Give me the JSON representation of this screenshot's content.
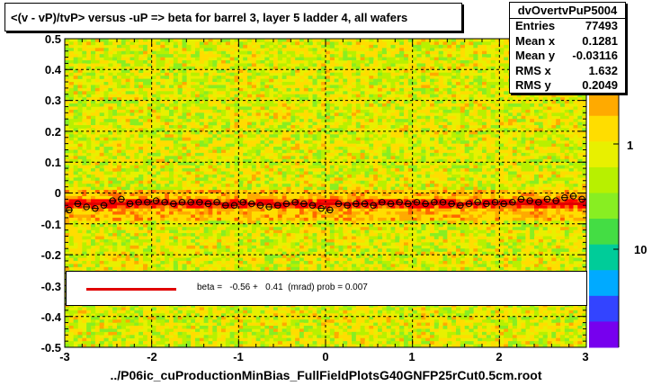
{
  "chart_data": {
    "type": "heatmap",
    "title": "<(v - vP)/tvP> versus  -uP => beta for barrel 3, layer 5 ladder 4, all wafers",
    "xlabel": "../P06ic_cuProductionMinBias_FullFieldPlotsG40GNFP25rCut0.5cm.root",
    "ylabel": "",
    "xlim": [
      -3,
      3
    ],
    "ylim": [
      -0.5,
      0.5
    ],
    "x_ticks": [
      "-3",
      "-2",
      "-1",
      "0",
      "1",
      "2",
      "3"
    ],
    "y_ticks": [
      "-0.5",
      "-0.4",
      "-0.3",
      "-0.2",
      "-0.1",
      "0",
      "0.1",
      "0.2",
      "0.3",
      "0.4",
      "0.5"
    ],
    "z_ticks": [
      "1",
      "10"
    ],
    "z_scale": "log",
    "grid": true,
    "palette": [
      "#ff0000",
      "#ff6600",
      "#ffaa00",
      "#ffdd00",
      "#e8f000",
      "#b8f000",
      "#88ee22",
      "#44dd44",
      "#00cc99",
      "#00aaff",
      "#3344ff",
      "#7700ee"
    ],
    "profile": {
      "name": "dvOvertvPuP5004",
      "x": [
        -2.95,
        -2.85,
        -2.75,
        -2.65,
        -2.55,
        -2.45,
        -2.35,
        -2.25,
        -2.15,
        -2.05,
        -1.95,
        -1.85,
        -1.75,
        -1.65,
        -1.55,
        -1.45,
        -1.35,
        -1.25,
        -1.15,
        -1.05,
        -0.95,
        -0.85,
        -0.75,
        -0.65,
        -0.55,
        -0.45,
        -0.35,
        -0.25,
        -0.15,
        -0.05,
        0.05,
        0.15,
        0.25,
        0.35,
        0.45,
        0.55,
        0.65,
        0.75,
        0.85,
        0.95,
        1.05,
        1.15,
        1.25,
        1.35,
        1.45,
        1.55,
        1.65,
        1.75,
        1.85,
        1.95,
        2.05,
        2.15,
        2.25,
        2.35,
        2.45,
        2.55,
        2.65,
        2.75,
        2.85,
        2.95
      ],
      "y": [
        -0.055,
        -0.035,
        -0.045,
        -0.05,
        -0.04,
        -0.025,
        -0.02,
        -0.035,
        -0.03,
        -0.03,
        -0.025,
        -0.03,
        -0.035,
        -0.03,
        -0.03,
        -0.03,
        -0.035,
        -0.03,
        -0.04,
        -0.04,
        -0.03,
        -0.035,
        -0.04,
        -0.045,
        -0.04,
        -0.035,
        -0.03,
        -0.035,
        -0.04,
        -0.05,
        -0.055,
        -0.035,
        -0.04,
        -0.035,
        -0.035,
        -0.04,
        -0.03,
        -0.035,
        -0.03,
        -0.035,
        -0.03,
        -0.035,
        -0.03,
        -0.03,
        -0.035,
        -0.04,
        -0.035,
        -0.03,
        -0.035,
        -0.03,
        -0.035,
        -0.03,
        -0.02,
        -0.025,
        -0.03,
        -0.02,
        -0.025,
        -0.015,
        -0.01,
        -0.02
      ]
    },
    "fit": {
      "label": "beta =   -0.56 +   0.41  (mrad) prob = 0.007",
      "color": "#e00000",
      "y_value": -0.035
    }
  },
  "stats": {
    "name": "dvOvertvPuP5004",
    "rows": [
      {
        "label": "Entries",
        "value": "77493"
      },
      {
        "label": "Mean x",
        "value": "0.1281"
      },
      {
        "label": "Mean y",
        "value": "-0.03116"
      },
      {
        "label": "RMS x",
        "value": "1.632"
      },
      {
        "label": "RMS y",
        "value": "0.2049"
      }
    ]
  }
}
